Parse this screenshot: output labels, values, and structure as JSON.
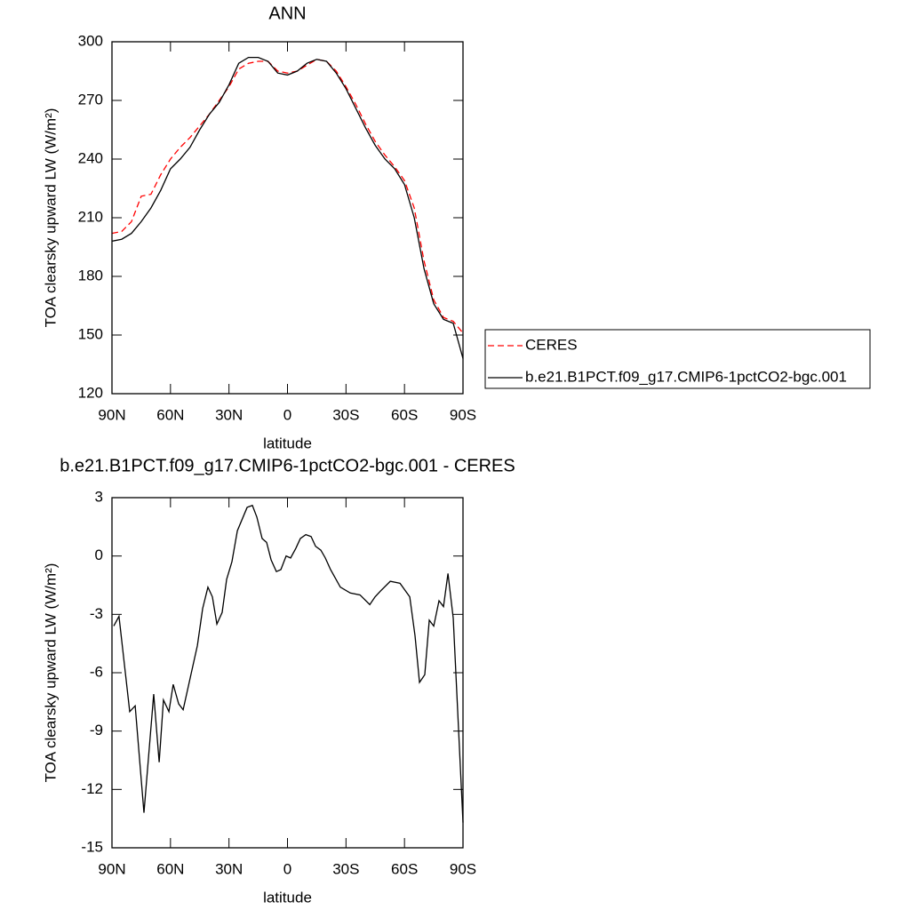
{
  "chart_data": [
    {
      "type": "line",
      "title": "ANN",
      "x_label": "latitude",
      "y_label": "TOA clearsky upward LW (W/m²)",
      "x": [
        90,
        85,
        80,
        75,
        70,
        65,
        60,
        55,
        50,
        45,
        40,
        35,
        30,
        25,
        20,
        15,
        10,
        5,
        0,
        -5,
        -10,
        -15,
        -20,
        -25,
        -30,
        -35,
        -40,
        -45,
        -50,
        -55,
        -60,
        -65,
        -70,
        -75,
        -80,
        -85,
        -90
      ],
      "series": [
        {
          "name": "CERES",
          "color": "#ff0000",
          "style": "dashed",
          "values": [
            202,
            203,
            208,
            221,
            222,
            232,
            240,
            246,
            251,
            257,
            263,
            270,
            277,
            286,
            289,
            290,
            290,
            285,
            284,
            285,
            288,
            291,
            290,
            285,
            277,
            268,
            258,
            249,
            242,
            236,
            229,
            215,
            188,
            168,
            159,
            157,
            151
          ]
        },
        {
          "name": "b.e21.B1PCT.f09_g17.CMIP6-1pctCO2-bgc.001",
          "color": "#000000",
          "style": "solid",
          "values": [
            198,
            199,
            202,
            208,
            215,
            224,
            235,
            240,
            246,
            255,
            263,
            269,
            278,
            289,
            292,
            292,
            290,
            284,
            283,
            285,
            289,
            291,
            290,
            284,
            276,
            266,
            256,
            247,
            240,
            235,
            227,
            210,
            184,
            166,
            158,
            156,
            138
          ]
        }
      ],
      "xlim": [
        90,
        -90
      ],
      "xticks": [
        {
          "value": 90,
          "label": "90N"
        },
        {
          "value": 60,
          "label": "60N"
        },
        {
          "value": 30,
          "label": "30N"
        },
        0,
        {
          "value": -30,
          "label": "30S"
        },
        {
          "value": -60,
          "label": "60S"
        },
        {
          "value": -90,
          "label": "90S"
        }
      ],
      "ylim": [
        120,
        300
      ],
      "yticks": [
        120,
        150,
        180,
        210,
        240,
        270,
        300
      ],
      "legend": "right"
    },
    {
      "type": "line",
      "title": "b.e21.B1PCT.f09_g17.CMIP6-1pctCO2-bgc.001 - CERES",
      "x_label": "latitude",
      "y_label": "TOA clearsky upward LW (W/m²)",
      "x": [
        89.1,
        86.4,
        80.9,
        78.1,
        73.6,
        68.6,
        65.8,
        63.6,
        60.8,
        58.6,
        55.8,
        53.5,
        46.2,
        43.5,
        40.8,
        38.5,
        36.2,
        33.5,
        31.2,
        28.5,
        25.7,
        20.7,
        18.0,
        15.7,
        13.0,
        10.7,
        8.4,
        5.7,
        3.4,
        0.7,
        -1.6,
        -4.3,
        -6.6,
        -9.4,
        -12.1,
        -14.4,
        -17.1,
        -19.4,
        -22.1,
        -27.1,
        -32.2,
        -37.2,
        -42.2,
        -44.9,
        -47.7,
        -52.7,
        -57.7,
        -62.7,
        -65.4,
        -67.7,
        -70.4,
        -72.7,
        -75.0,
        -77.7,
        -80.0,
        -82.3,
        -85.0,
        -90.0
      ],
      "series": [
        {
          "color": "#000000",
          "style": "solid",
          "values": [
            -3.6,
            -3.1,
            -8.0,
            -7.7,
            -13.2,
            -7.1,
            -10.6,
            -7.4,
            -8.0,
            -6.6,
            -7.6,
            -7.9,
            -4.6,
            -2.7,
            -1.6,
            -2.1,
            -3.5,
            -2.9,
            -1.2,
            -0.3,
            1.3,
            2.5,
            2.6,
            2.0,
            0.9,
            0.7,
            -0.2,
            -0.8,
            -0.7,
            0.0,
            -0.1,
            0.4,
            0.9,
            1.1,
            1.0,
            0.5,
            0.3,
            -0.1,
            -0.7,
            -1.6,
            -1.9,
            -2.0,
            -2.5,
            -2.1,
            -1.8,
            -1.3,
            -1.4,
            -2.1,
            -4.1,
            -6.5,
            -6.1,
            -3.3,
            -3.6,
            -2.3,
            -2.6,
            -0.9,
            -3.2,
            -13.7
          ]
        }
      ],
      "xlim": [
        90,
        -90
      ],
      "xticks": [
        {
          "value": 90,
          "label": "90N"
        },
        {
          "value": 60,
          "label": "60N"
        },
        {
          "value": 30,
          "label": "30N"
        },
        0,
        {
          "value": -30,
          "label": "30S"
        },
        {
          "value": -60,
          "label": "60S"
        },
        {
          "value": -90,
          "label": "90S"
        }
      ],
      "ylim": [
        -15,
        3
      ],
      "yticks": [
        -15,
        -12,
        -9,
        -6,
        -3,
        0,
        3
      ]
    }
  ]
}
